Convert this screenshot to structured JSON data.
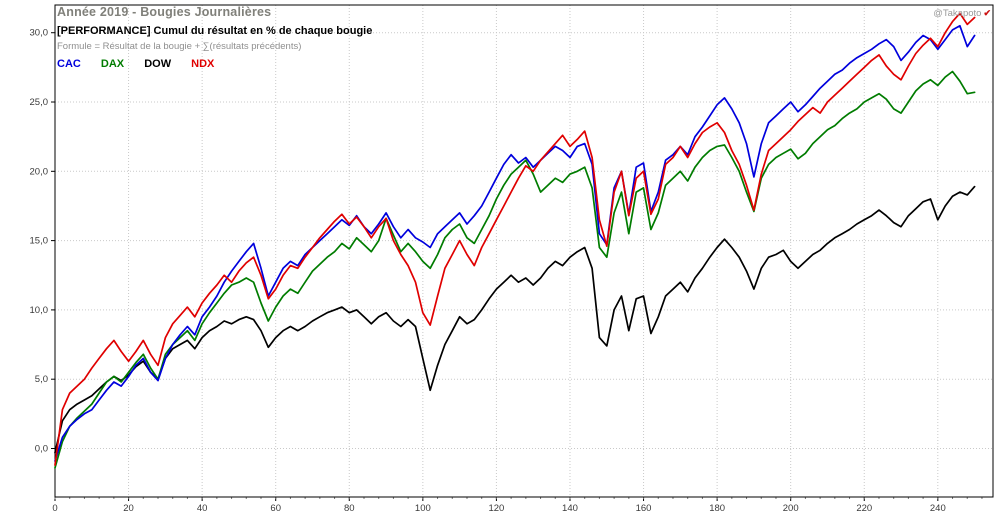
{
  "header": {
    "title": "Année 2019 - Bougies Journalières",
    "subtitle": "[PERFORMANCE] Cumul du résultat en % de chaque bougie",
    "formula": "Formule = Résultat de la bougie + ∑(résultats précédents)",
    "watermark": "@Takapoto"
  },
  "legend": [
    {
      "label": "CAC",
      "color": "#0000dd"
    },
    {
      "label": "DAX",
      "color": "#007c00"
    },
    {
      "label": "DOW",
      "color": "#000000"
    },
    {
      "label": "NDX",
      "color": "#e00000"
    }
  ],
  "chart_data": {
    "type": "line",
    "title": "[PERFORMANCE] Cumul du résultat en % de chaque bougie",
    "subtitle": "Année 2019 - Bougies Journalières",
    "xlabel": "",
    "ylabel": "",
    "xlim": [
      0,
      255
    ],
    "ylim": [
      -3.5,
      32
    ],
    "xticks": [
      0,
      20,
      40,
      60,
      80,
      100,
      120,
      140,
      160,
      180,
      200,
      220,
      240
    ],
    "yticks": [
      0,
      5,
      10,
      15,
      20,
      25,
      30
    ],
    "ytick_labels": [
      "0,0",
      "5,0",
      "10,0",
      "15,0",
      "20,0",
      "25,0",
      "30,0"
    ],
    "grid": true,
    "legend_position": "top-left",
    "x": [
      0,
      2,
      4,
      6,
      8,
      10,
      12,
      14,
      16,
      18,
      20,
      22,
      24,
      26,
      28,
      30,
      32,
      34,
      36,
      38,
      40,
      42,
      44,
      46,
      48,
      50,
      52,
      54,
      56,
      58,
      60,
      62,
      64,
      66,
      68,
      70,
      72,
      74,
      76,
      78,
      80,
      82,
      84,
      86,
      88,
      90,
      92,
      94,
      96,
      98,
      100,
      102,
      104,
      106,
      108,
      110,
      112,
      114,
      116,
      118,
      120,
      122,
      124,
      126,
      128,
      130,
      132,
      134,
      136,
      138,
      140,
      142,
      144,
      146,
      148,
      150,
      152,
      154,
      156,
      158,
      160,
      162,
      164,
      166,
      168,
      170,
      172,
      174,
      176,
      178,
      180,
      182,
      184,
      186,
      188,
      190,
      192,
      194,
      196,
      198,
      200,
      202,
      204,
      206,
      208,
      210,
      212,
      214,
      216,
      218,
      220,
      222,
      224,
      226,
      228,
      230,
      232,
      234,
      236,
      238,
      240,
      242,
      244,
      246,
      248,
      250
    ],
    "series": [
      {
        "name": "DOW",
        "color": "#000000",
        "values": [
          -0.3,
          2.0,
          2.8,
          3.2,
          3.5,
          3.8,
          4.3,
          4.8,
          5.2,
          4.9,
          5.3,
          5.9,
          6.3,
          5.5,
          5.0,
          6.5,
          7.2,
          7.5,
          7.8,
          7.2,
          8.0,
          8.5,
          8.8,
          9.2,
          9.0,
          9.3,
          9.5,
          9.3,
          8.5,
          7.3,
          8.0,
          8.5,
          8.8,
          8.5,
          8.8,
          9.2,
          9.5,
          9.8,
          10.0,
          10.2,
          9.8,
          10.0,
          9.5,
          9.0,
          9.5,
          9.8,
          9.2,
          8.8,
          9.3,
          8.8,
          6.5,
          4.2,
          6.0,
          7.5,
          8.5,
          9.5,
          9.0,
          9.3,
          10.0,
          10.8,
          11.5,
          12.0,
          12.5,
          12.0,
          12.3,
          11.8,
          12.3,
          13.0,
          13.5,
          13.2,
          13.8,
          14.2,
          14.5,
          13.0,
          8.0,
          7.4,
          10.0,
          11.0,
          8.5,
          10.8,
          11.0,
          8.3,
          9.5,
          11.0,
          11.5,
          12.0,
          11.3,
          12.3,
          13.0,
          13.8,
          14.5,
          15.1,
          14.5,
          13.8,
          12.8,
          11.5,
          13.0,
          13.8,
          14.0,
          14.3,
          13.5,
          13.0,
          13.5,
          14.0,
          14.3,
          14.8,
          15.2,
          15.5,
          15.8,
          16.2,
          16.5,
          16.8,
          17.2,
          16.8,
          16.3,
          16.0,
          16.8,
          17.3,
          17.8,
          18.0,
          16.5,
          17.5,
          18.2,
          18.5,
          18.3,
          18.9
        ]
      },
      {
        "name": "DAX",
        "color": "#007c00",
        "values": [
          -1.4,
          0.5,
          1.6,
          2.2,
          2.7,
          3.2,
          4.0,
          4.8,
          5.2,
          4.8,
          5.5,
          6.2,
          6.8,
          5.8,
          5.0,
          6.8,
          7.5,
          8.0,
          8.5,
          7.8,
          9.0,
          9.8,
          10.5,
          11.2,
          11.8,
          12.0,
          12.3,
          12.0,
          10.5,
          9.2,
          10.2,
          11.0,
          11.5,
          11.2,
          12.0,
          12.8,
          13.3,
          13.8,
          14.2,
          14.8,
          14.4,
          15.2,
          14.7,
          14.2,
          15.0,
          16.6,
          15.4,
          14.2,
          14.8,
          14.2,
          13.5,
          13.0,
          14.0,
          15.2,
          15.8,
          16.2,
          15.2,
          14.8,
          15.8,
          16.8,
          18.0,
          19.0,
          19.8,
          20.3,
          20.8,
          19.8,
          18.5,
          19.0,
          19.5,
          19.2,
          19.8,
          20.0,
          20.3,
          18.8,
          14.5,
          13.8,
          17.0,
          18.5,
          15.5,
          18.5,
          18.8,
          15.8,
          17.0,
          19.0,
          19.5,
          20.0,
          19.3,
          20.3,
          21.0,
          21.5,
          21.8,
          21.9,
          21.0,
          20.0,
          18.5,
          17.1,
          19.5,
          20.5,
          21.0,
          21.3,
          21.6,
          20.9,
          21.3,
          22.0,
          22.5,
          23.0,
          23.3,
          23.8,
          24.2,
          24.5,
          25.0,
          25.3,
          25.6,
          25.2,
          24.5,
          24.2,
          25.0,
          25.8,
          26.3,
          26.6,
          26.2,
          26.8,
          27.2,
          26.5,
          25.6,
          25.7
        ]
      },
      {
        "name": "CAC",
        "color": "#0000dd",
        "values": [
          -0.9,
          0.8,
          1.6,
          2.1,
          2.5,
          2.8,
          3.5,
          4.2,
          4.8,
          4.5,
          5.2,
          6.0,
          6.5,
          5.5,
          4.9,
          6.5,
          7.5,
          8.2,
          8.8,
          8.2,
          9.5,
          10.2,
          11.0,
          12.0,
          12.8,
          13.5,
          14.2,
          14.8,
          13.0,
          11.0,
          12.0,
          13.0,
          13.5,
          13.2,
          14.0,
          14.5,
          15.0,
          15.5,
          16.0,
          16.5,
          16.1,
          16.8,
          16.0,
          15.5,
          16.2,
          17.0,
          16.0,
          15.2,
          15.8,
          15.2,
          14.9,
          14.5,
          15.5,
          16.0,
          16.5,
          17.0,
          16.2,
          16.8,
          17.5,
          18.5,
          19.5,
          20.5,
          21.2,
          20.6,
          21.0,
          20.3,
          20.8,
          21.3,
          21.8,
          21.5,
          21.0,
          21.8,
          22.0,
          20.5,
          15.5,
          14.7,
          18.8,
          20.0,
          16.9,
          20.3,
          20.6,
          17.1,
          18.5,
          20.8,
          21.2,
          21.8,
          21.2,
          22.5,
          23.2,
          24.0,
          24.8,
          25.3,
          24.5,
          23.5,
          22.0,
          19.6,
          22.0,
          23.5,
          24.0,
          24.5,
          25.0,
          24.3,
          24.8,
          25.4,
          26.0,
          26.5,
          27.0,
          27.3,
          27.8,
          28.2,
          28.5,
          28.8,
          29.2,
          29.5,
          29.0,
          28.0,
          28.6,
          29.3,
          29.8,
          29.5,
          28.8,
          29.5,
          30.2,
          30.5,
          29.0,
          29.8
        ]
      },
      {
        "name": "NDX",
        "color": "#e00000",
        "values": [
          -1.2,
          2.8,
          4.0,
          4.5,
          5.0,
          5.8,
          6.5,
          7.2,
          7.8,
          7.0,
          6.3,
          7.0,
          7.8,
          6.8,
          6.0,
          8.0,
          9.0,
          9.6,
          10.2,
          9.5,
          10.5,
          11.2,
          11.8,
          12.5,
          12.0,
          12.8,
          13.4,
          13.8,
          12.5,
          10.8,
          11.5,
          12.5,
          13.2,
          13.0,
          13.8,
          14.5,
          15.2,
          15.8,
          16.4,
          16.9,
          16.2,
          16.7,
          16.0,
          15.2,
          16.0,
          16.6,
          15.0,
          14.0,
          13.2,
          12.0,
          9.8,
          8.9,
          11.0,
          13.0,
          14.0,
          15.0,
          14.0,
          13.2,
          14.5,
          15.5,
          16.5,
          17.5,
          18.5,
          19.5,
          20.4,
          20.0,
          20.8,
          21.4,
          22.0,
          22.6,
          21.8,
          22.3,
          22.9,
          21.0,
          16.5,
          14.6,
          18.5,
          20.0,
          16.8,
          19.5,
          20.0,
          16.9,
          18.0,
          20.5,
          21.0,
          21.8,
          21.0,
          22.0,
          22.8,
          23.2,
          23.5,
          22.8,
          21.5,
          20.5,
          19.0,
          17.2,
          19.8,
          21.5,
          22.0,
          22.5,
          23.0,
          23.6,
          24.1,
          24.6,
          24.2,
          25.0,
          25.5,
          26.0,
          26.5,
          27.0,
          27.5,
          28.0,
          28.4,
          27.6,
          27.0,
          26.6,
          27.6,
          28.5,
          29.1,
          29.6,
          29.0,
          30.0,
          30.8,
          31.4,
          30.6,
          31.1
        ]
      }
    ]
  }
}
